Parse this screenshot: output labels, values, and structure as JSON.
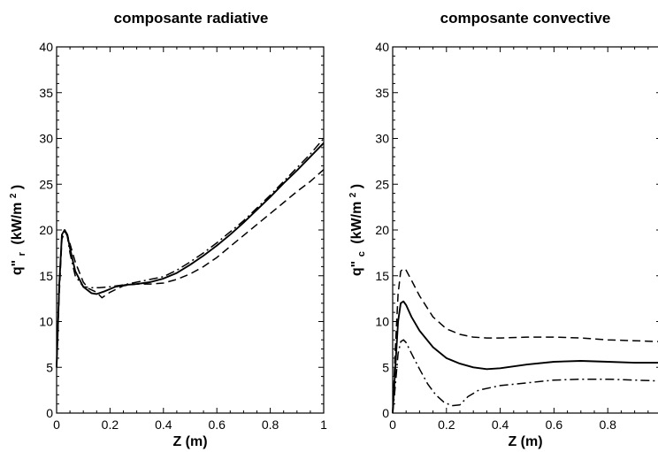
{
  "chart_data": [
    {
      "type": "line",
      "title": "composante radiative",
      "xlabel": "Z (m)",
      "ylabel": {
        "prefix": "q\"",
        "sub": "r",
        "unit_pre": "(kW/m",
        "sup": "2",
        "unit_post": ")"
      },
      "xlim": [
        0,
        1
      ],
      "ylim": [
        0,
        40
      ],
      "xticks": [
        0,
        0.2,
        0.4,
        0.6,
        0.8,
        1
      ],
      "xtick_labels": [
        "0",
        "0.2",
        "0.4",
        "0.6",
        "0.8",
        "1"
      ],
      "yticks": [
        0,
        5,
        10,
        15,
        20,
        25,
        30,
        35,
        40
      ],
      "ytick_labels": [
        "0",
        "5",
        "10",
        "15",
        "20",
        "25",
        "30",
        "35",
        "40"
      ],
      "grid": false,
      "series": [
        {
          "style": "solid",
          "x": [
            0,
            0.01,
            0.02,
            0.03,
            0.04,
            0.05,
            0.07,
            0.1,
            0.13,
            0.15,
            0.18,
            0.22,
            0.26,
            0.3,
            0.35,
            0.4,
            0.45,
            0.5,
            0.55,
            0.6,
            0.65,
            0.7,
            0.75,
            0.8,
            0.85,
            0.9,
            0.95,
            1.0
          ],
          "y": [
            5,
            14,
            19.5,
            20,
            19.5,
            18,
            15.5,
            13.8,
            13.1,
            13.0,
            13.3,
            13.8,
            14.0,
            14.1,
            14.3,
            14.7,
            15.3,
            16.2,
            17.2,
            18.3,
            19.5,
            20.8,
            22.2,
            23.6,
            25.1,
            26.5,
            28.0,
            29.5
          ]
        },
        {
          "style": "dashed",
          "x": [
            0,
            0.01,
            0.02,
            0.03,
            0.04,
            0.05,
            0.07,
            0.1,
            0.12,
            0.15,
            0.17,
            0.2,
            0.25,
            0.3,
            0.35,
            0.4,
            0.45,
            0.5,
            0.55,
            0.6,
            0.65,
            0.7,
            0.75,
            0.8,
            0.85,
            0.9,
            0.95,
            1.0
          ],
          "y": [
            5,
            13,
            19.0,
            19.8,
            19.5,
            18.5,
            16.5,
            14.3,
            13.6,
            13.2,
            12.6,
            13.2,
            13.9,
            14.1,
            14.1,
            14.2,
            14.6,
            15.2,
            16.0,
            17.0,
            18.2,
            19.4,
            20.6,
            21.8,
            23.0,
            24.2,
            25.3,
            26.6
          ]
        },
        {
          "style": "dashdot",
          "x": [
            0,
            0.01,
            0.02,
            0.03,
            0.04,
            0.05,
            0.07,
            0.1,
            0.13,
            0.16,
            0.2,
            0.25,
            0.3,
            0.35,
            0.4,
            0.45,
            0.5,
            0.55,
            0.6,
            0.65,
            0.7,
            0.75,
            0.8,
            0.85,
            0.9,
            0.95,
            1.0
          ],
          "y": [
            5,
            14,
            19.3,
            20,
            19.3,
            17.5,
            15.0,
            13.8,
            13.7,
            13.7,
            13.8,
            14.0,
            14.3,
            14.6,
            14.9,
            15.6,
            16.5,
            17.5,
            18.6,
            19.8,
            21.0,
            22.4,
            23.8,
            25.3,
            26.8,
            28.3,
            30.0
          ]
        }
      ]
    },
    {
      "type": "line",
      "title": "composante convective",
      "xlabel": "Z (m)",
      "ylabel": {
        "prefix": "q\"",
        "sub": "c",
        "unit_pre": "(kW/m",
        "sup": "2",
        "unit_post": ")"
      },
      "xlim": [
        0,
        1
      ],
      "ylim": [
        0,
        40
      ],
      "xticks": [
        0,
        0.2,
        0.4,
        0.6,
        0.8,
        1
      ],
      "xtick_labels": [
        "0",
        "0.2",
        "0.4",
        "0.6",
        "0.8",
        ""
      ],
      "yticks": [
        0,
        5,
        10,
        15,
        20,
        25,
        30,
        35,
        40
      ],
      "ytick_labels": [
        "0",
        "5",
        "10",
        "15",
        "20",
        "25",
        "30",
        "35",
        "40"
      ],
      "grid": false,
      "series": [
        {
          "style": "solid",
          "x": [
            0,
            0.01,
            0.02,
            0.03,
            0.04,
            0.05,
            0.07,
            0.1,
            0.15,
            0.2,
            0.25,
            0.3,
            0.35,
            0.4,
            0.5,
            0.6,
            0.7,
            0.8,
            0.9,
            1.0
          ],
          "y": [
            0,
            5,
            10,
            12.0,
            12.2,
            11.8,
            10.5,
            9.0,
            7.2,
            6.0,
            5.4,
            5.0,
            4.8,
            4.9,
            5.3,
            5.6,
            5.7,
            5.6,
            5.5,
            5.5
          ]
        },
        {
          "style": "dashed",
          "x": [
            0,
            0.01,
            0.02,
            0.03,
            0.04,
            0.05,
            0.07,
            0.1,
            0.15,
            0.2,
            0.25,
            0.3,
            0.35,
            0.4,
            0.5,
            0.6,
            0.7,
            0.8,
            0.9,
            1.0
          ],
          "y": [
            0,
            7,
            13,
            15.5,
            15.8,
            15.6,
            14.5,
            12.8,
            10.5,
            9.2,
            8.6,
            8.3,
            8.2,
            8.2,
            8.3,
            8.3,
            8.2,
            8.0,
            7.9,
            7.8
          ]
        },
        {
          "style": "dashdot",
          "x": [
            0,
            0.01,
            0.02,
            0.03,
            0.04,
            0.05,
            0.07,
            0.1,
            0.13,
            0.16,
            0.19,
            0.22,
            0.25,
            0.28,
            0.32,
            0.4,
            0.5,
            0.6,
            0.7,
            0.8,
            0.9,
            1.0
          ],
          "y": [
            0,
            3,
            6.5,
            7.8,
            8.0,
            7.7,
            6.5,
            4.8,
            3.2,
            2.0,
            1.2,
            0.8,
            0.9,
            1.8,
            2.5,
            3.0,
            3.3,
            3.6,
            3.7,
            3.7,
            3.6,
            3.5
          ]
        }
      ]
    }
  ]
}
